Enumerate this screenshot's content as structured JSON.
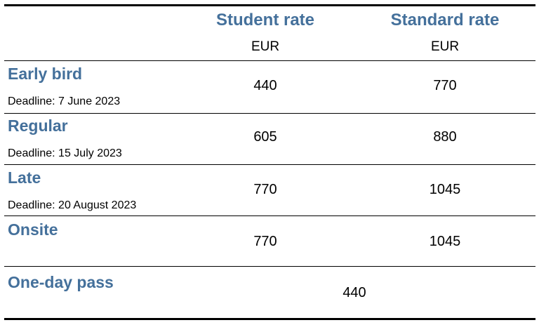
{
  "colors": {
    "accent": "#44709b",
    "text": "#000000",
    "rule": "#000000"
  },
  "header": {
    "student_rate": "Student rate",
    "standard_rate": "Standard rate",
    "student_currency": "EUR",
    "standard_currency": "EUR"
  },
  "rows": [
    {
      "category": "Early bird",
      "deadline": "Deadline: 7 June 2023",
      "student": "440",
      "standard": "770"
    },
    {
      "category": "Regular",
      "deadline": "Deadline: 15 July 2023",
      "student": "605",
      "standard": "880"
    },
    {
      "category": "Late",
      "deadline": "Deadline: 20 August 2023",
      "student": "770",
      "standard": "1045"
    },
    {
      "category": "Onsite",
      "deadline": "",
      "student": "770",
      "standard": "1045"
    }
  ],
  "one_day_pass": {
    "category": "One-day pass",
    "price": "440"
  }
}
